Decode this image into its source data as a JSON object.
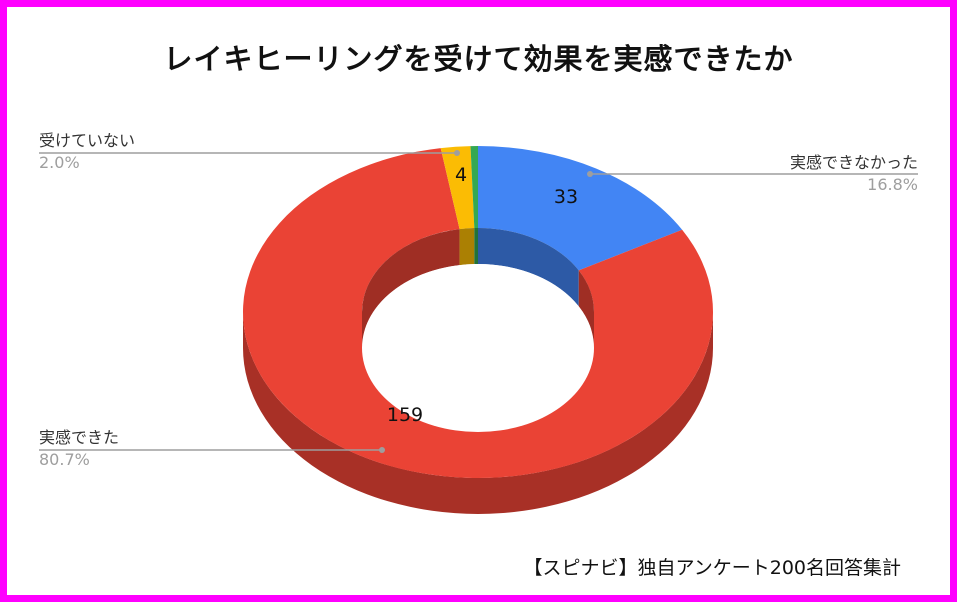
{
  "chart_data": {
    "type": "pie",
    "style": "3d-donut",
    "title": "レイキヒーリングを受けて効果を実感できたか",
    "slices": [
      {
        "label": "実感できなかった",
        "value": 33,
        "percent": "16.8%",
        "color": "#4285f4"
      },
      {
        "label": "実感できた",
        "value": 159,
        "percent": "80.7%",
        "color": "#ea4335"
      },
      {
        "label": "受けていない",
        "value": 4,
        "percent": "2.0%",
        "color": "#fbbc04"
      },
      {
        "label": "",
        "value": 1,
        "percent": "",
        "color": "#34a853"
      }
    ],
    "legend": "callout-labels",
    "note": "【スピナビ】独自アンケート200名回答集計"
  },
  "colors": {
    "frame": "#ff00ff",
    "label_text": "#333333",
    "percent_text": "#9e9e9e",
    "leader_line": "#9e9e9e"
  }
}
